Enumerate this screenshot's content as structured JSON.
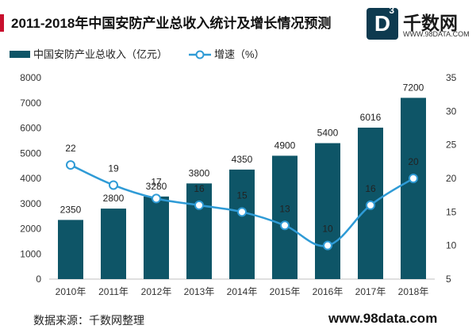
{
  "header": {
    "title": "2011-2018年中国安防产业总收入统计及增长情况预测"
  },
  "logo": {
    "mark": "D",
    "mark_sup": "3",
    "name": "千数网",
    "url": "WWW.98DATA.COM"
  },
  "footer": {
    "source": "数据来源：千数网整理",
    "website": "www.98data.com"
  },
  "colors": {
    "bar": "#0e5567",
    "line": "#2f9bd6",
    "title_accent": "#c8102e"
  },
  "chart_data": {
    "type": "bar",
    "title": "2011-2018年中国安防产业总收入统计及增长情况预测",
    "categories": [
      "2010年",
      "2011年",
      "2012年",
      "2013年",
      "2014年",
      "2015年",
      "2016年",
      "2017年",
      "2018年"
    ],
    "series": [
      {
        "name": "中国安防产业总收入（亿元）",
        "type": "bar",
        "axis": "left",
        "values": [
          2350,
          2800,
          3280,
          3800,
          4350,
          4900,
          5400,
          6016,
          7200
        ]
      },
      {
        "name": "增速（%）",
        "type": "line",
        "axis": "right",
        "values": [
          22,
          19,
          17,
          16,
          15,
          13,
          10,
          16,
          20
        ]
      }
    ],
    "y_left": {
      "min": 0,
      "max": 8000,
      "ticks": [
        0,
        1000,
        2000,
        3000,
        4000,
        5000,
        6000,
        7000,
        8000
      ]
    },
    "y_right": {
      "min": 5,
      "max": 35,
      "ticks": [
        5,
        10,
        15,
        20,
        25,
        30,
        35
      ]
    },
    "grid": false,
    "legend_position": "top-left"
  }
}
